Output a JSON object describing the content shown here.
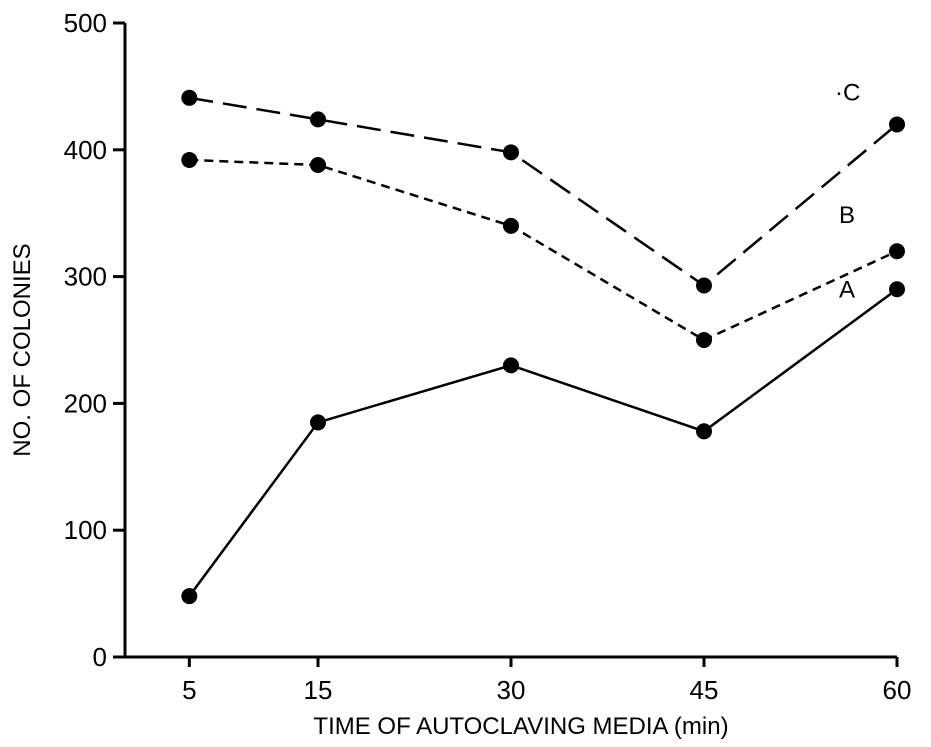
{
  "chart_data": {
    "type": "line",
    "title": "",
    "xlabel": "TIME OF AUTOCLAVING MEDIA (min)",
    "ylabel": "NO. OF COLONIES",
    "x": [
      5,
      15,
      30,
      45,
      60
    ],
    "x_ticks": [
      "5",
      "15",
      "30",
      "45",
      "60"
    ],
    "y_ticks": [
      "0",
      "100",
      "200",
      "300",
      "400",
      "500"
    ],
    "xlim": [
      0,
      60
    ],
    "ylim": [
      0,
      500
    ],
    "grid": false,
    "legend": "none",
    "series": [
      {
        "name": "A",
        "label": "A",
        "style": "solid",
        "values": [
          48,
          185,
          230,
          178,
          290
        ]
      },
      {
        "name": "B",
        "label": "B",
        "style": "short-dash",
        "values": [
          392,
          388,
          340,
          250,
          320
        ]
      },
      {
        "name": "C",
        "label": "·C",
        "style": "long-dash",
        "values": [
          441,
          424,
          398,
          293,
          420
        ]
      }
    ],
    "colors": {
      "line": "#000000",
      "marker": "#000000",
      "background": "#ffffff"
    }
  }
}
